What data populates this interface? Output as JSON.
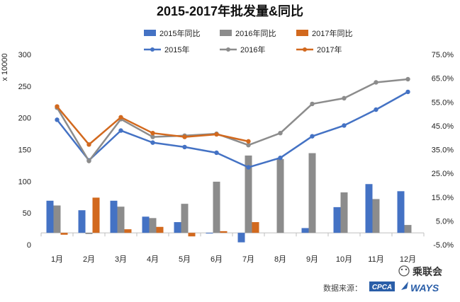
{
  "chart_data": {
    "type": "bar-line-combo",
    "title": "2015-2017年批发量&同比",
    "ylabel_left": "x 10000",
    "categories": [
      "1月",
      "2月",
      "3月",
      "4月",
      "5月",
      "6月",
      "7月",
      "8月",
      "9月",
      "10月",
      "11月",
      "12月"
    ],
    "left_axis": {
      "ylim": [
        0,
        300
      ],
      "ticks": [
        "0",
        "50",
        "100",
        "150",
        "200",
        "250",
        "300"
      ],
      "tick_values": [
        0,
        50,
        100,
        150,
        200,
        250,
        300
      ]
    },
    "right_axis": {
      "ylim": [
        -5,
        75
      ],
      "ticks": [
        "-5.0%",
        "5.0%",
        "15.0%",
        "25.0%",
        "35.0%",
        "45.0%",
        "55.0%",
        "65.0%",
        "75.0%"
      ],
      "tick_values": [
        -5,
        5,
        15,
        25,
        35,
        45,
        55,
        65,
        75
      ]
    },
    "bar_series": [
      {
        "name": "2015年同比",
        "color": "#4472c4",
        "values": [
          13.5,
          9.5,
          13.5,
          6.8,
          4.5,
          -0.3,
          -4,
          null,
          2.0,
          10.8,
          20.5,
          17.5
        ]
      },
      {
        "name": "2016年同比",
        "color": "#8c8c8c",
        "values": [
          11.5,
          -0.5,
          11,
          6.2,
          12.2,
          21.5,
          32.5,
          31,
          33.5,
          17,
          14.2,
          3.3
        ]
      },
      {
        "name": "2017年同比",
        "color": "#d2691e",
        "values": [
          -0.8,
          14.8,
          1.5,
          2.5,
          -1.5,
          0.7,
          4.5,
          null,
          null,
          null,
          null,
          null
        ]
      }
    ],
    "line_series": [
      {
        "name": "2015年",
        "color": "#4472c4",
        "values": [
          197,
          133,
          180,
          161,
          154,
          145,
          122,
          137,
          171,
          188,
          213,
          241
        ]
      },
      {
        "name": "2016年",
        "color": "#8c8c8c",
        "values": [
          216,
          132,
          198,
          170,
          172,
          175,
          157,
          176,
          222,
          231,
          256,
          261
        ]
      },
      {
        "name": "2017年",
        "color": "#d2691e",
        "values": [
          218,
          158,
          201,
          176,
          170,
          174,
          163,
          null,
          null,
          null,
          null,
          null
        ]
      }
    ],
    "legend_placement": "top-center",
    "grid": false
  },
  "footer": {
    "source_label": "数据来源：",
    "cpca_logo_text": "CPCA",
    "ways_logo_text": "WAYS",
    "brand_label": "乘联会"
  }
}
